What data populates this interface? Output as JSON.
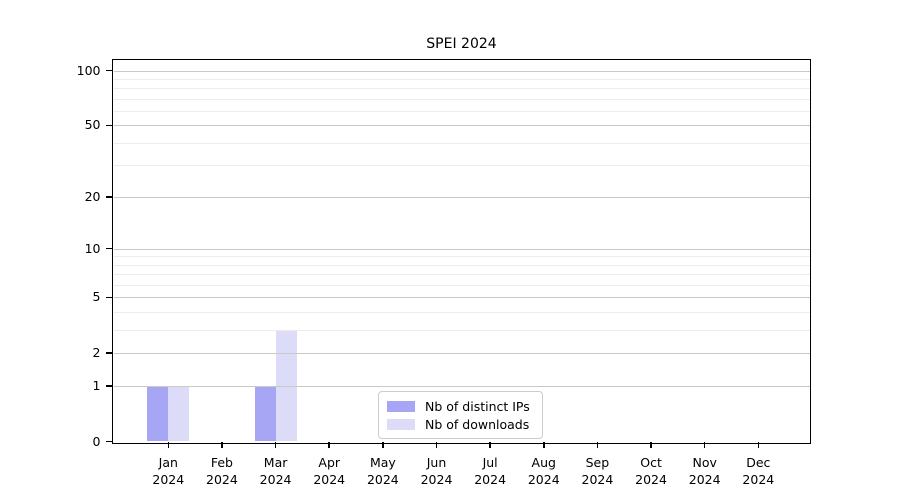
{
  "title": "SPEI 2024",
  "chart_data": {
    "type": "bar",
    "title": "SPEI 2024",
    "x_categories": [
      {
        "month": "Jan",
        "year": "2024"
      },
      {
        "month": "Feb",
        "year": "2024"
      },
      {
        "month": "Mar",
        "year": "2024"
      },
      {
        "month": "Apr",
        "year": "2024"
      },
      {
        "month": "May",
        "year": "2024"
      },
      {
        "month": "Jun",
        "year": "2024"
      },
      {
        "month": "Jul",
        "year": "2024"
      },
      {
        "month": "Aug",
        "year": "2024"
      },
      {
        "month": "Sep",
        "year": "2024"
      },
      {
        "month": "Oct",
        "year": "2024"
      },
      {
        "month": "Nov",
        "year": "2024"
      },
      {
        "month": "Dec",
        "year": "2024"
      }
    ],
    "series": [
      {
        "name": "Nb of distinct IPs",
        "color": "#a6a6f5",
        "values": [
          1,
          0,
          1,
          0,
          0,
          0,
          0,
          0,
          0,
          0,
          0,
          0
        ]
      },
      {
        "name": "Nb of downloads",
        "color": "#dcdcf8",
        "values": [
          1,
          0,
          3,
          0,
          0,
          0,
          0,
          0,
          0,
          0,
          0,
          0
        ]
      }
    ],
    "yscale": "log1p",
    "ylim": [
      0,
      100
    ],
    "yticks_major": [
      0,
      1,
      2,
      5,
      10,
      20,
      50,
      100
    ],
    "yticks_minor": [
      3,
      4,
      6,
      7,
      8,
      9,
      30,
      40,
      60,
      70,
      80,
      90
    ],
    "grid": true,
    "legend_position": "lower center",
    "colors": {
      "grid_major": "#c9c9c9",
      "grid_minor": "#ececec",
      "axis": "#000000",
      "legend_border": "#cccccc",
      "background": "#ffffff"
    }
  }
}
